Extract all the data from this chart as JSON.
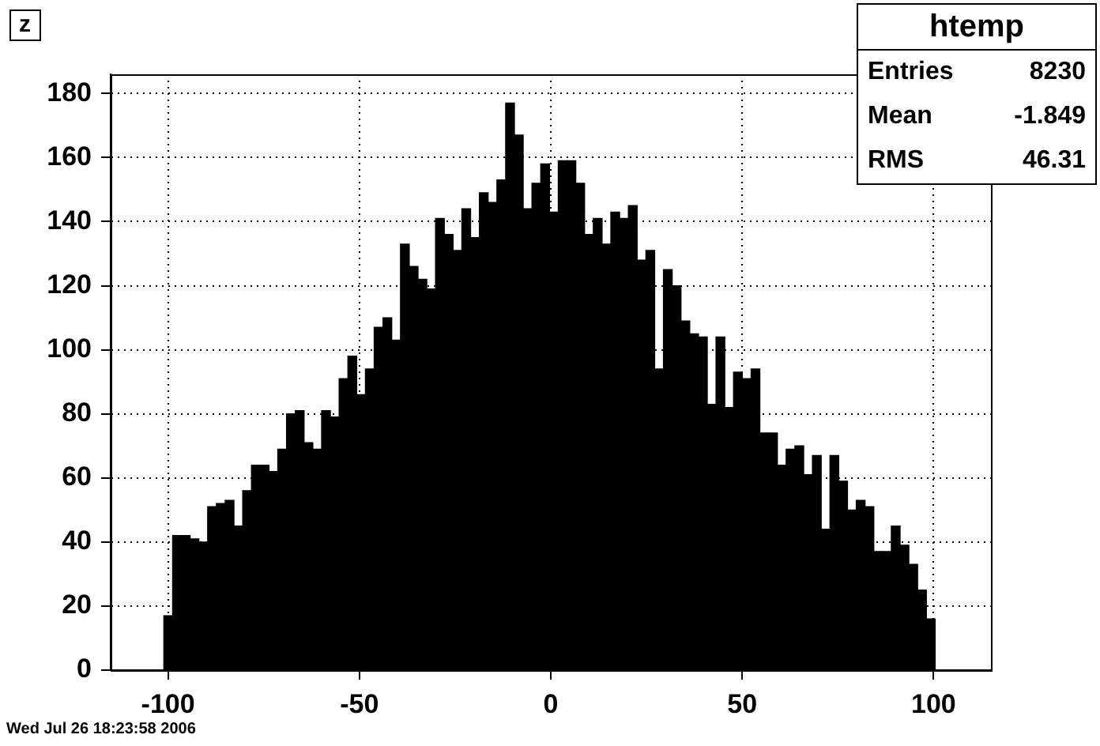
{
  "chart_data": {
    "type": "histogram",
    "title": "z",
    "bins": [
      -101.1,
      -98.81,
      -96.52,
      -94.23,
      -91.94,
      -89.65,
      -87.36,
      -85.07,
      -82.78,
      -80.49,
      -78.2,
      -75.91,
      -73.62,
      -71.33,
      -69.04,
      -66.75,
      -64.46,
      -62.17,
      -59.88,
      -57.59,
      -55.3,
      -53.01,
      -50.72,
      -48.43,
      -46.14,
      -43.85,
      -41.56,
      -39.27,
      -36.98,
      -34.69,
      -32.4,
      -30.11,
      -27.82,
      -25.53,
      -23.24,
      -20.95,
      -18.66,
      -16.37,
      -14.08,
      -11.79,
      -9.5,
      -7.21,
      -4.92,
      -2.63,
      -0.34,
      1.95,
      4.24,
      6.53,
      8.82,
      11.11,
      13.4,
      15.69,
      17.98,
      20.27,
      22.56,
      24.85,
      27.14,
      29.43,
      31.72,
      34.01,
      36.3,
      38.59,
      40.88,
      43.17,
      45.46,
      47.75,
      50.04,
      52.33,
      54.62,
      56.91,
      59.2,
      61.49,
      63.78,
      66.07,
      68.36,
      70.65,
      72.94,
      75.23,
      77.52,
      79.81,
      82.1,
      84.39,
      86.68,
      88.97,
      91.26,
      93.55,
      95.84,
      98.13,
      100.42
    ],
    "values": [
      17,
      42,
      42,
      41,
      40,
      51,
      52,
      53,
      45,
      56,
      64,
      64,
      62,
      69,
      80,
      81,
      71,
      69,
      81,
      79,
      91,
      98,
      86,
      94,
      107,
      110,
      103,
      133,
      126,
      122,
      119,
      141,
      136,
      131,
      144,
      135,
      149,
      146,
      153,
      177,
      167,
      144,
      152,
      158,
      143,
      159,
      159,
      152,
      136,
      141,
      133,
      143,
      141,
      145,
      128,
      131,
      94,
      125,
      120,
      109,
      105,
      104,
      83,
      104,
      82,
      93,
      91,
      94,
      74,
      74,
      64,
      69,
      70,
      61,
      67,
      44,
      67,
      59,
      50,
      53,
      51,
      37,
      37,
      45,
      39,
      33,
      25,
      16
    ],
    "color": "#000000",
    "xlim": [
      -115,
      115
    ],
    "xticks": [
      -100,
      -50,
      0,
      50,
      100
    ],
    "ylim": [
      0,
      186
    ],
    "yticks": [
      0,
      20,
      40,
      60,
      80,
      100,
      120,
      140,
      160,
      180
    ],
    "grid": true,
    "legend": false,
    "annotations": [
      "htemp",
      "Entries",
      "8230",
      "Mean",
      "-1.849",
      "RMS",
      "46.31",
      "Wed Jul 26 18:23:58 2006"
    ]
  }
}
